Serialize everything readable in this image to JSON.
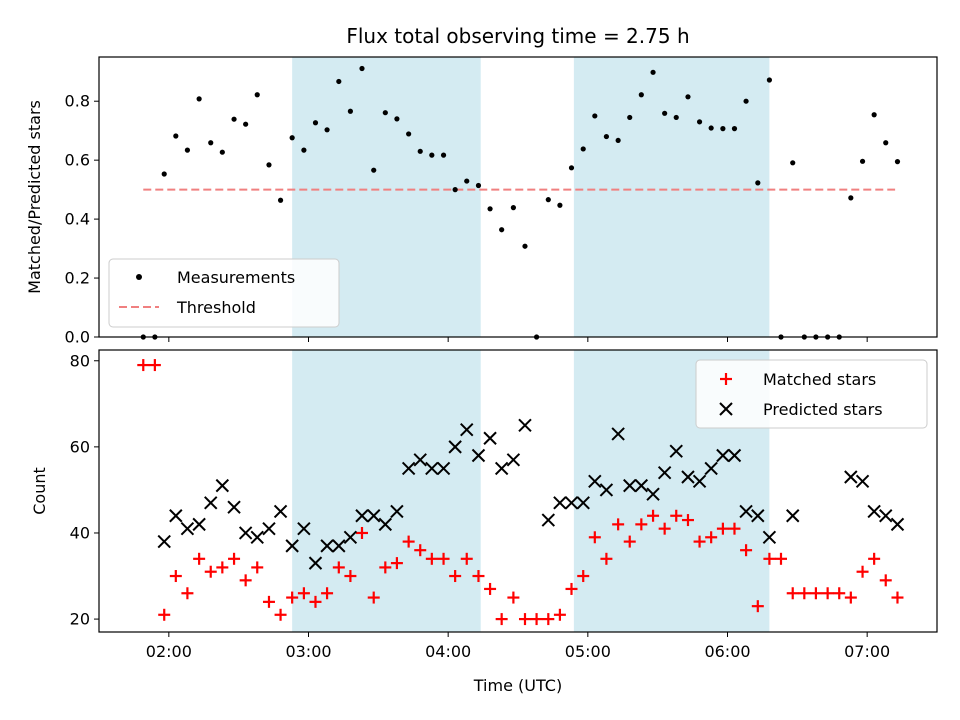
{
  "chart_data": [
    {
      "type": "scatter",
      "title": "Flux total observing time = 2.75 h",
      "xlabel": "",
      "ylabel": "Matched/Predicted stars",
      "ylim": [
        0,
        0.95
      ],
      "yticks": [
        0.0,
        0.2,
        0.4,
        0.6,
        0.8
      ],
      "ytick_labels": [
        "0.0",
        "0.2",
        "0.4",
        "0.6",
        "0.8"
      ],
      "xlim_hours": [
        1.5,
        7.5
      ],
      "xtick_hours": [
        2,
        3,
        4,
        5,
        6,
        7
      ],
      "xtick_labels": [
        "02:00",
        "03:00",
        "04:00",
        "05:00",
        "06:00",
        "07:00"
      ],
      "shaded_spans_hours": [
        [
          2.883,
          4.233
        ],
        [
          4.9,
          6.3
        ]
      ],
      "shade_color": "#d4ebf2",
      "legend_position": "lower-left",
      "legend": [
        "Measurements",
        "Threshold"
      ],
      "threshold": {
        "name": "Threshold",
        "value": 0.5,
        "x_start_hours": 1.817,
        "x_end_hours": 7.2,
        "color": "#f08080"
      },
      "series": [
        {
          "name": "Measurements",
          "color": "#000000",
          "x_hours": [
            1.817,
            1.9,
            1.967,
            2.05,
            2.133,
            2.217,
            2.3,
            2.383,
            2.467,
            2.55,
            2.633,
            2.717,
            2.8,
            2.883,
            2.967,
            3.05,
            3.133,
            3.217,
            3.3,
            3.383,
            3.467,
            3.55,
            3.633,
            3.717,
            3.8,
            3.883,
            3.967,
            4.05,
            4.133,
            4.217,
            4.3,
            4.383,
            4.467,
            4.55,
            4.633,
            4.717,
            4.8,
            4.883,
            4.967,
            5.05,
            5.133,
            5.217,
            5.3,
            5.383,
            5.467,
            5.55,
            5.633,
            5.717,
            5.8,
            5.883,
            5.967,
            6.05,
            6.133,
            6.217,
            6.3,
            6.383,
            6.467,
            6.55,
            6.633,
            6.717,
            6.8,
            6.883,
            6.967,
            7.05,
            7.133,
            7.217
          ],
          "values": [
            0.0,
            0.0,
            0.553,
            0.682,
            0.634,
            0.808,
            0.659,
            0.627,
            0.739,
            0.722,
            0.822,
            0.584,
            0.464,
            0.676,
            0.634,
            0.727,
            0.703,
            0.867,
            0.766,
            0.911,
            0.566,
            0.761,
            0.74,
            0.689,
            0.63,
            0.617,
            0.617,
            0.5,
            0.529,
            0.514,
            0.435,
            0.364,
            0.439,
            0.308,
            0.0,
            0.466,
            0.447,
            0.574,
            0.638,
            0.75,
            0.68,
            0.667,
            0.745,
            0.822,
            0.898,
            0.759,
            0.745,
            0.815,
            0.73,
            0.709,
            0.707,
            0.707,
            0.8,
            0.523,
            0.872,
            0.0,
            0.591,
            0.0,
            0.0,
            0.0,
            0.0,
            0.472,
            0.596,
            0.754,
            0.659,
            0.595
          ]
        }
      ]
    },
    {
      "type": "scatter",
      "title": "",
      "xlabel": "Time (UTC)",
      "ylabel": "Count",
      "ylim": [
        17,
        82.5
      ],
      "yticks": [
        20,
        40,
        60,
        80
      ],
      "ytick_labels": [
        "20",
        "40",
        "60",
        "80"
      ],
      "xlim_hours": [
        1.5,
        7.5
      ],
      "xtick_hours": [
        2,
        3,
        4,
        5,
        6,
        7
      ],
      "xtick_labels": [
        "02:00",
        "03:00",
        "04:00",
        "05:00",
        "06:00",
        "07:00"
      ],
      "shaded_spans_hours": [
        [
          2.883,
          4.233
        ],
        [
          4.9,
          6.3
        ]
      ],
      "shade_color": "#d4ebf2",
      "legend_position": "upper-right",
      "legend": [
        "Matched stars",
        "Predicted stars"
      ],
      "series": [
        {
          "name": "Matched stars",
          "marker": "plus",
          "color": "#ff0000",
          "x_hours": [
            1.817,
            1.9,
            1.967,
            2.05,
            2.133,
            2.217,
            2.3,
            2.383,
            2.467,
            2.55,
            2.633,
            2.717,
            2.8,
            2.883,
            2.967,
            3.05,
            3.133,
            3.217,
            3.3,
            3.383,
            3.467,
            3.55,
            3.633,
            3.717,
            3.8,
            3.883,
            3.967,
            4.05,
            4.133,
            4.217,
            4.3,
            4.383,
            4.467,
            4.55,
            4.633,
            4.717,
            4.8,
            4.883,
            4.967,
            5.05,
            5.133,
            5.217,
            5.3,
            5.383,
            5.467,
            5.55,
            5.633,
            5.717,
            5.8,
            5.883,
            5.967,
            6.05,
            6.133,
            6.217,
            6.3,
            6.383,
            6.467,
            6.55,
            6.633,
            6.717,
            6.8,
            6.883,
            6.967,
            7.05,
            7.133,
            7.217
          ],
          "values": [
            79,
            79,
            21,
            30,
            26,
            34,
            31,
            32,
            34,
            29,
            32,
            24,
            21,
            25,
            26,
            24,
            26,
            32,
            30,
            40,
            25,
            32,
            33,
            38,
            36,
            34,
            34,
            30,
            34,
            30,
            27,
            20,
            25,
            20,
            20,
            20,
            21,
            27,
            30,
            39,
            34,
            42,
            38,
            42,
            44,
            41,
            44,
            43,
            38,
            39,
            41,
            41,
            36,
            23,
            34,
            34,
            26,
            26,
            26,
            26,
            26,
            25,
            31,
            34,
            29,
            25
          ]
        },
        {
          "name": "Predicted stars",
          "marker": "x",
          "color": "#000000",
          "x_hours": [
            1.967,
            2.05,
            2.133,
            2.217,
            2.3,
            2.383,
            2.467,
            2.55,
            2.633,
            2.717,
            2.8,
            2.883,
            2.967,
            3.05,
            3.133,
            3.217,
            3.3,
            3.383,
            3.467,
            3.55,
            3.633,
            3.717,
            3.8,
            3.883,
            3.967,
            4.05,
            4.133,
            4.217,
            4.3,
            4.383,
            4.467,
            4.55,
            4.717,
            4.8,
            4.883,
            4.967,
            5.05,
            5.133,
            5.217,
            5.3,
            5.383,
            5.467,
            5.55,
            5.633,
            5.717,
            5.8,
            5.883,
            5.967,
            6.05,
            6.133,
            6.217,
            6.3,
            6.467,
            6.883,
            6.967,
            7.05,
            7.133,
            7.217
          ],
          "values": [
            38,
            44,
            41,
            42,
            47,
            51,
            46,
            40,
            39,
            41,
            45,
            37,
            41,
            33,
            37,
            37,
            39,
            44,
            44,
            42,
            45,
            55,
            57,
            55,
            55,
            60,
            64,
            58,
            62,
            55,
            57,
            65,
            43,
            47,
            47,
            47,
            52,
            50,
            63,
            51,
            51,
            49,
            54,
            59,
            53,
            52,
            55,
            58,
            58,
            45,
            44,
            39,
            44,
            53,
            52,
            45,
            44,
            42
          ]
        }
      ]
    }
  ]
}
